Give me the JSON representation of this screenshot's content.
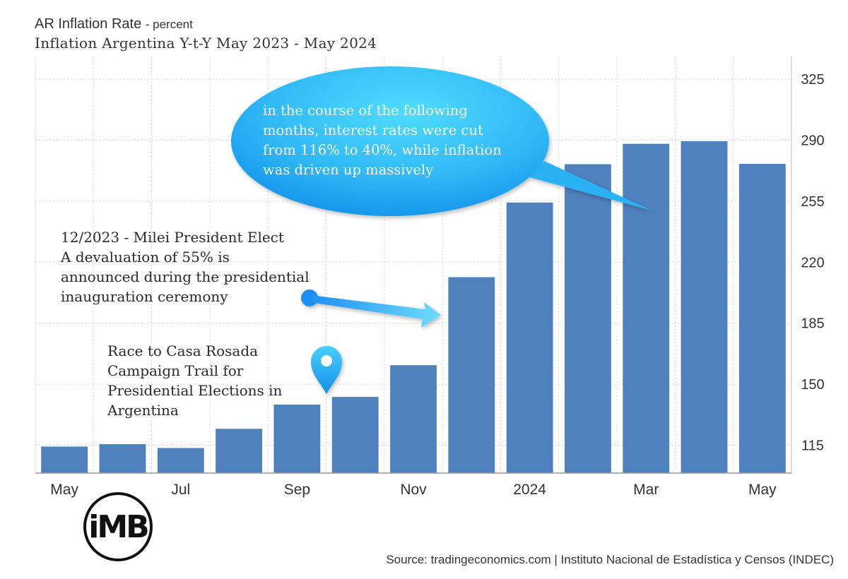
{
  "header": {
    "title": "AR Inflation Rate",
    "unit": "- percent",
    "subtitle": "Inflation Argentina Y-t-Y May 2023 - May 2024"
  },
  "chart_data": {
    "type": "bar",
    "categories": [
      "May 2023",
      "Jun 2023",
      "Jul 2023",
      "Aug 2023",
      "Sep 2023",
      "Oct 2023",
      "Nov 2023",
      "Dec 2023",
      "Jan 2024",
      "Feb 2024",
      "Mar 2024",
      "Apr 2024",
      "May 2024"
    ],
    "values": [
      114.2,
      115.6,
      113.4,
      124.4,
      138.3,
      142.7,
      160.9,
      211.4,
      254.2,
      276.2,
      287.9,
      289.4,
      276.4
    ],
    "x_tick_labels": [
      "May",
      "",
      "Jul",
      "",
      "Sep",
      "",
      "Nov",
      "",
      "2024",
      "",
      "Mar",
      "",
      "May"
    ],
    "y_ticks": [
      115,
      150,
      185,
      220,
      255,
      290,
      325
    ],
    "ylim": [
      99,
      338
    ],
    "y_axis_side": "right",
    "grid": true,
    "bar_color": "#4f81bd",
    "annotations": [
      {
        "text": [
          "12/2023 - Milei President Elect",
          "A devaluation of 55% is",
          "announced during the presidential",
          "inauguration ceremony"
        ],
        "points_to": "Dec 2023"
      },
      {
        "text": [
          "Race to Casa Rosada",
          "Campaign Trail for",
          "Presidential Elections in",
          "Argentina"
        ],
        "marker": "map-pin",
        "points_to": "Oct 2023"
      },
      {
        "text": [
          "in the course of the following",
          "months, interest rates were cut",
          "from 116% to 40%, while inflation",
          "was driven up massively"
        ],
        "style": "speech-bubble",
        "points_to": "Mar 2024"
      }
    ]
  },
  "logo": {
    "text": "iMB"
  },
  "source": "Source: tradingeconomics.com | Instituto Nacional de Estadística y Censos (INDEC)",
  "colors": {
    "bar": "#4f81bd",
    "bubble_light": "#44d4fb",
    "bubble_dark": "#1a9bef",
    "grid": "#d8d8d8"
  }
}
